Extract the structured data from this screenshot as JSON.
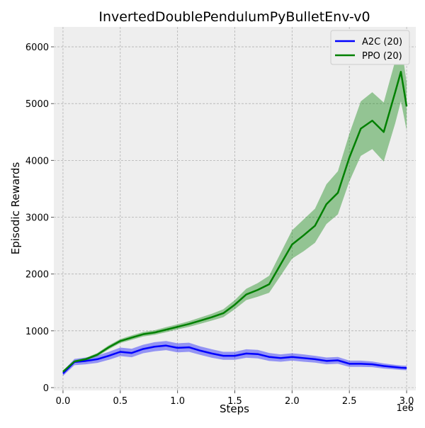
{
  "chart_data": {
    "type": "line",
    "title": "InvertedDoublePendulumPyBulletEnv-v0",
    "xlabel": "Steps",
    "ylabel": "Episodic Rewards",
    "x_multiplier_label": "1e6",
    "xlim": [
      -0.08,
      3.08
    ],
    "ylim": [
      -50,
      6350
    ],
    "xticks": [
      0.0,
      0.5,
      1.0,
      1.5,
      2.0,
      2.5,
      3.0
    ],
    "xtick_labels": [
      "0.0",
      "0.5",
      "1.0",
      "1.5",
      "2.0",
      "2.5",
      "3.0"
    ],
    "yticks": [
      0,
      1000,
      2000,
      3000,
      4000,
      5000,
      6000
    ],
    "ytick_labels": [
      "0",
      "1000",
      "2000",
      "3000",
      "4000",
      "5000",
      "6000"
    ],
    "grid": true,
    "legend_position": "top-right",
    "x": [
      0.0,
      0.1,
      0.2,
      0.3,
      0.4,
      0.5,
      0.6,
      0.7,
      0.8,
      0.9,
      1.0,
      1.1,
      1.2,
      1.3,
      1.4,
      1.5,
      1.6,
      1.7,
      1.8,
      1.9,
      2.0,
      2.1,
      2.2,
      2.3,
      2.4,
      2.5,
      2.6,
      2.7,
      2.8,
      2.9,
      2.95,
      3.0
    ],
    "series": [
      {
        "name": "A2C (20)",
        "color": "#0000ff",
        "values": [
          250,
          450,
          470,
          500,
          560,
          630,
          610,
          680,
          720,
          740,
          700,
          710,
          650,
          600,
          560,
          560,
          600,
          590,
          540,
          520,
          540,
          520,
          500,
          470,
          480,
          420,
          420,
          410,
          380,
          360,
          350,
          345
        ],
        "band": [
          45,
          55,
          60,
          65,
          70,
          75,
          75,
          75,
          80,
          80,
          80,
          80,
          75,
          75,
          70,
          70,
          75,
          75,
          70,
          65,
          65,
          65,
          60,
          60,
          60,
          55,
          55,
          50,
          45,
          40,
          40,
          40
        ]
      },
      {
        "name": "PPO (20)",
        "color": "#008000",
        "values": [
          280,
          460,
          500,
          580,
          710,
          820,
          880,
          940,
          970,
          1020,
          1070,
          1120,
          1180,
          1240,
          1310,
          1460,
          1640,
          1720,
          1820,
          2170,
          2520,
          2680,
          2850,
          3230,
          3430,
          4050,
          4560,
          4700,
          4500,
          5200,
          5560,
          4950
        ],
        "band": [
          20,
          20,
          25,
          30,
          35,
          35,
          40,
          40,
          40,
          45,
          45,
          50,
          55,
          60,
          70,
          80,
          100,
          120,
          150,
          200,
          250,
          280,
          300,
          350,
          380,
          420,
          480,
          500,
          520,
          550,
          520,
          420
        ]
      }
    ]
  }
}
